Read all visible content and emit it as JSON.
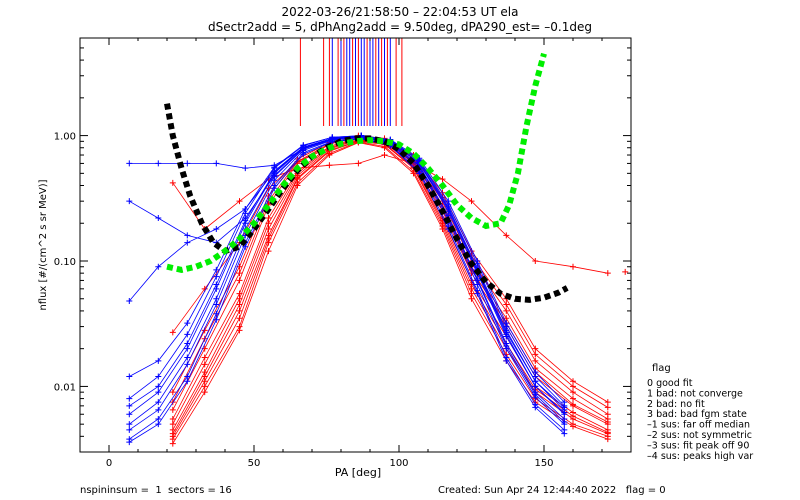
{
  "chart_data": {
    "type": "scatter",
    "title": "2022-03-26/21:58:50 – 22:04:53 UT ela",
    "subtitle": "dSectr2add = 5, dPhAng2add = 9.50deg, dPA290_est=  –0.1deg",
    "xlabel": "PA [deg]",
    "ylabel": "nflux [#/(cm^2 s sr MeV)]",
    "xlim": [
      -10,
      180
    ],
    "ylim": [
      0.003,
      6
    ],
    "yscale": "log",
    "grid": false,
    "x_ticks": [
      0,
      50,
      100,
      150
    ],
    "y_ticks": [
      0.01,
      0.1,
      1.0
    ],
    "y_tick_labels": [
      "0.01",
      "0.10",
      "1.00"
    ],
    "legend_position": "right",
    "legend_title": "flag",
    "legend_entries": [
      " 0 good fit",
      " 1 bad: not converge",
      " 2 bad: no fit",
      " 3 bad: bad fgm state",
      "–1 sus: far off median",
      "–2 sus: not symmetric",
      "–3 sus: fit peak off 90",
      "–4 sus: peaks high var"
    ],
    "colors": {
      "red": "#ff0000",
      "blue": "#0000ff",
      "black_fit": "#000000",
      "green_fit": "#00ee00"
    },
    "series": [
      {
        "color": "red",
        "x": [
          22,
          33,
          45,
          55,
          65,
          76,
          86,
          95,
          105,
          115,
          125,
          137,
          147,
          160,
          172
        ],
        "y": [
          0.005,
          0.015,
          0.05,
          0.2,
          0.5,
          0.8,
          0.95,
          0.9,
          0.6,
          0.25,
          0.08,
          0.03,
          0.012,
          0.007,
          0.005
        ]
      },
      {
        "color": "red",
        "x": [
          22,
          33,
          45,
          55,
          65,
          76,
          86,
          95,
          105,
          115,
          125,
          137,
          147,
          160,
          172
        ],
        "y": [
          0.004,
          0.011,
          0.035,
          0.15,
          0.45,
          0.75,
          0.9,
          0.85,
          0.55,
          0.2,
          0.06,
          0.02,
          0.009,
          0.0055,
          0.0042
        ]
      },
      {
        "color": "red",
        "x": [
          22,
          33,
          45,
          55,
          65,
          76,
          86,
          95,
          105,
          115,
          125,
          137,
          147,
          160,
          172
        ],
        "y": [
          0.0065,
          0.02,
          0.07,
          0.28,
          0.6,
          0.85,
          1.0,
          0.95,
          0.65,
          0.3,
          0.1,
          0.04,
          0.016,
          0.009,
          0.006
        ]
      },
      {
        "color": "red",
        "x": [
          22,
          33,
          45,
          55,
          65,
          76,
          86,
          95,
          105,
          115,
          125,
          137,
          147,
          160,
          172
        ],
        "y": [
          0.0035,
          0.009,
          0.028,
          0.12,
          0.4,
          0.7,
          0.88,
          0.8,
          0.5,
          0.18,
          0.05,
          0.016,
          0.0075,
          0.0048,
          0.0038
        ]
      },
      {
        "color": "red",
        "x": [
          22,
          33,
          45,
          55,
          65,
          76,
          86,
          95,
          105,
          115,
          125,
          137,
          147,
          160,
          172
        ],
        "y": [
          0.009,
          0.028,
          0.09,
          0.33,
          0.65,
          0.88,
          0.97,
          0.92,
          0.7,
          0.35,
          0.12,
          0.05,
          0.02,
          0.011,
          0.0075
        ]
      },
      {
        "color": "red",
        "x": [
          22,
          33,
          45,
          55,
          65,
          76,
          86,
          95,
          105,
          115,
          125,
          137,
          147,
          160,
          172
        ],
        "y": [
          0.0045,
          0.013,
          0.045,
          0.18,
          0.48,
          0.78,
          0.93,
          0.88,
          0.58,
          0.22,
          0.07,
          0.025,
          0.01,
          0.0062,
          0.0045
        ]
      },
      {
        "color": "red",
        "x": [
          22,
          33,
          45,
          55,
          65,
          76,
          86,
          95,
          105,
          115,
          125,
          137,
          147,
          160,
          172
        ],
        "y": [
          0.027,
          0.06,
          0.14,
          0.38,
          0.62,
          0.8,
          0.92,
          0.86,
          0.62,
          0.28,
          0.09,
          0.035,
          0.014,
          0.008,
          0.0055
        ]
      },
      {
        "color": "red",
        "x": [
          22,
          33,
          45,
          55,
          65,
          76,
          86,
          95,
          105,
          115,
          125,
          137,
          147,
          160,
          172
        ],
        "y": [
          0.0055,
          0.017,
          0.055,
          0.22,
          0.52,
          0.82,
          0.96,
          0.91,
          0.62,
          0.27,
          0.085,
          0.032,
          0.013,
          0.0072,
          0.0052
        ]
      },
      {
        "color": "red",
        "x": [
          22,
          33,
          45,
          55,
          65,
          76,
          86,
          95,
          105,
          115,
          125,
          137,
          147,
          160,
          172
        ],
        "y": [
          0.42,
          0.18,
          0.3,
          0.45,
          0.55,
          0.58,
          0.6,
          0.7,
          0.6,
          0.45,
          0.3,
          0.16,
          0.1,
          0.09,
          0.08
        ]
      },
      {
        "color": "red",
        "x": [
          22,
          33,
          45,
          55,
          65,
          76,
          86,
          95,
          105,
          115,
          125,
          137,
          147,
          160,
          172
        ],
        "y": [
          0.0038,
          0.01,
          0.03,
          0.14,
          0.42,
          0.72,
          0.89,
          0.82,
          0.52,
          0.19,
          0.055,
          0.018,
          0.008,
          0.005,
          0.004
        ]
      },
      {
        "color": "red",
        "x": [
          22,
          33,
          45,
          55,
          65,
          76,
          86,
          95,
          105,
          115,
          125,
          137,
          147,
          160,
          172
        ],
        "y": [
          0.0075,
          0.024,
          0.08,
          0.3,
          0.62,
          0.86,
          0.98,
          0.93,
          0.68,
          0.32,
          0.11,
          0.045,
          0.018,
          0.01,
          0.0068
        ]
      },
      {
        "color": "red",
        "x": [
          22,
          33,
          45,
          55,
          65,
          76,
          86,
          95,
          105,
          115,
          125,
          137,
          147,
          160,
          172
        ],
        "y": [
          0.0042,
          0.012,
          0.04,
          0.16,
          0.46,
          0.76,
          0.91,
          0.86,
          0.56,
          0.21,
          0.065,
          0.022,
          0.0095,
          0.0058,
          0.0043
        ]
      },
      {
        "color": "blue",
        "x": [
          7,
          17,
          27,
          37,
          47,
          57,
          67,
          77,
          87,
          97,
          107,
          117,
          127,
          137,
          147,
          157
        ],
        "y": [
          0.006,
          0.009,
          0.02,
          0.06,
          0.2,
          0.5,
          0.8,
          0.95,
          1.0,
          0.9,
          0.6,
          0.25,
          0.08,
          0.025,
          0.01,
          0.006
        ]
      },
      {
        "color": "blue",
        "x": [
          7,
          17,
          27,
          37,
          47,
          57,
          67,
          77,
          87,
          97,
          107,
          117,
          127,
          137,
          147,
          157
        ],
        "y": [
          0.0045,
          0.0065,
          0.015,
          0.045,
          0.16,
          0.44,
          0.76,
          0.92,
          0.97,
          0.86,
          0.55,
          0.21,
          0.065,
          0.02,
          0.0082,
          0.005
        ]
      },
      {
        "color": "blue",
        "x": [
          7,
          17,
          27,
          37,
          47,
          57,
          67,
          77,
          87,
          97,
          107,
          117,
          127,
          137,
          147,
          157
        ],
        "y": [
          0.008,
          0.012,
          0.026,
          0.075,
          0.24,
          0.55,
          0.83,
          0.97,
          1.0,
          0.92,
          0.64,
          0.28,
          0.095,
          0.03,
          0.012,
          0.007
        ]
      },
      {
        "color": "blue",
        "x": [
          7,
          17,
          27,
          37,
          47,
          57,
          67,
          77,
          87,
          97,
          107,
          117,
          127,
          137,
          147,
          157
        ],
        "y": [
          0.0038,
          0.0055,
          0.012,
          0.038,
          0.14,
          0.4,
          0.73,
          0.9,
          0.95,
          0.84,
          0.52,
          0.19,
          0.058,
          0.017,
          0.0072,
          0.0045
        ]
      },
      {
        "color": "blue",
        "x": [
          7,
          17,
          27,
          37,
          47,
          57,
          67,
          77,
          87,
          97,
          107,
          117,
          127,
          137,
          147,
          157
        ],
        "y": [
          0.6,
          0.6,
          0.6,
          0.6,
          0.55,
          0.58,
          0.78,
          0.93,
          0.98,
          0.88,
          0.58,
          0.23,
          0.072,
          0.022,
          0.009,
          0.0055
        ]
      },
      {
        "color": "blue",
        "x": [
          7,
          17,
          27,
          37,
          47,
          57,
          67,
          77,
          87,
          97,
          107,
          117,
          127,
          137,
          147,
          157
        ],
        "y": [
          0.3,
          0.22,
          0.16,
          0.14,
          0.22,
          0.48,
          0.79,
          0.94,
          0.99,
          0.89,
          0.61,
          0.26,
          0.085,
          0.027,
          0.011,
          0.0065
        ]
      },
      {
        "color": "blue",
        "x": [
          7,
          17,
          27,
          37,
          47,
          57,
          67,
          77,
          87,
          97,
          107,
          117,
          127,
          137,
          147,
          157
        ],
        "y": [
          0.048,
          0.09,
          0.14,
          0.18,
          0.26,
          0.52,
          0.81,
          0.95,
          1.0,
          0.91,
          0.63,
          0.27,
          0.088,
          0.028,
          0.011,
          0.0068
        ]
      },
      {
        "color": "blue",
        "x": [
          7,
          17,
          27,
          37,
          47,
          57,
          67,
          77,
          87,
          97,
          107,
          117,
          127,
          137,
          147,
          157
        ],
        "y": [
          0.005,
          0.0075,
          0.017,
          0.05,
          0.18,
          0.47,
          0.78,
          0.93,
          0.98,
          0.87,
          0.57,
          0.22,
          0.07,
          0.021,
          0.0086,
          0.0052
        ]
      },
      {
        "color": "blue",
        "x": [
          7,
          17,
          27,
          37,
          47,
          57,
          67,
          77,
          87,
          97,
          107,
          117,
          127,
          137,
          147,
          157
        ],
        "y": [
          0.012,
          0.016,
          0.032,
          0.085,
          0.26,
          0.56,
          0.84,
          0.97,
          1.0,
          0.93,
          0.66,
          0.3,
          0.1,
          0.032,
          0.013,
          0.0075
        ]
      },
      {
        "color": "blue",
        "x": [
          7,
          17,
          27,
          37,
          47,
          57,
          67,
          77,
          87,
          97,
          107,
          117,
          127,
          137,
          147,
          157
        ],
        "y": [
          0.0036,
          0.005,
          0.011,
          0.034,
          0.13,
          0.38,
          0.71,
          0.89,
          0.94,
          0.83,
          0.5,
          0.18,
          0.055,
          0.016,
          0.0068,
          0.0042
        ]
      },
      {
        "color": "blue",
        "x": [
          7,
          17,
          27,
          37,
          47,
          57,
          67,
          77,
          87,
          97,
          107,
          117,
          127,
          137,
          147,
          157
        ],
        "y": [
          0.007,
          0.01,
          0.022,
          0.065,
          0.21,
          0.51,
          0.81,
          0.95,
          0.99,
          0.9,
          0.61,
          0.26,
          0.083,
          0.026,
          0.01,
          0.0062
        ]
      }
    ],
    "fits": [
      {
        "name": "black",
        "color": "black_fit",
        "x": [
          20,
          22,
          25,
          28,
          32,
          36,
          40,
          45,
          50,
          55,
          60,
          65,
          70,
          75,
          80,
          85,
          90,
          95,
          100,
          105,
          110,
          115,
          120,
          125,
          130,
          135,
          140,
          145,
          150,
          155,
          158
        ],
        "y": [
          1.8,
          1.0,
          0.55,
          0.33,
          0.2,
          0.14,
          0.12,
          0.13,
          0.18,
          0.26,
          0.38,
          0.53,
          0.68,
          0.8,
          0.9,
          0.95,
          0.95,
          0.9,
          0.78,
          0.6,
          0.4,
          0.25,
          0.15,
          0.095,
          0.068,
          0.055,
          0.05,
          0.049,
          0.051,
          0.056,
          0.061
        ]
      },
      {
        "name": "green",
        "color": "green_fit",
        "x": [
          20,
          25,
          30,
          35,
          40,
          45,
          50,
          55,
          60,
          65,
          70,
          75,
          80,
          85,
          90,
          95,
          100,
          105,
          110,
          115,
          120,
          125,
          130,
          135,
          138,
          141,
          144,
          147,
          150
        ],
        "y": [
          0.09,
          0.085,
          0.09,
          0.1,
          0.12,
          0.15,
          0.2,
          0.28,
          0.4,
          0.55,
          0.68,
          0.78,
          0.86,
          0.9,
          0.92,
          0.9,
          0.85,
          0.72,
          0.55,
          0.4,
          0.28,
          0.22,
          0.19,
          0.2,
          0.28,
          0.5,
          1.2,
          2.5,
          4.5
        ]
      }
    ],
    "vlines": [
      {
        "color": "red",
        "x": [
          66,
          74,
          76,
          79,
          81,
          84,
          86,
          89,
          92,
          94,
          96,
          99,
          101
        ]
      },
      {
        "color": "blue",
        "x": [
          77,
          80,
          82,
          83,
          85,
          87,
          88,
          90,
          91,
          93,
          95,
          97
        ]
      }
    ],
    "outlier_points": [
      {
        "color": "red",
        "x": 178,
        "y": 0.082
      }
    ]
  },
  "footer": {
    "left": "nspininsum =  1  sectors = 16",
    "right": "Created: Sun Apr 24 12:44:40 2022   flag = 0"
  }
}
